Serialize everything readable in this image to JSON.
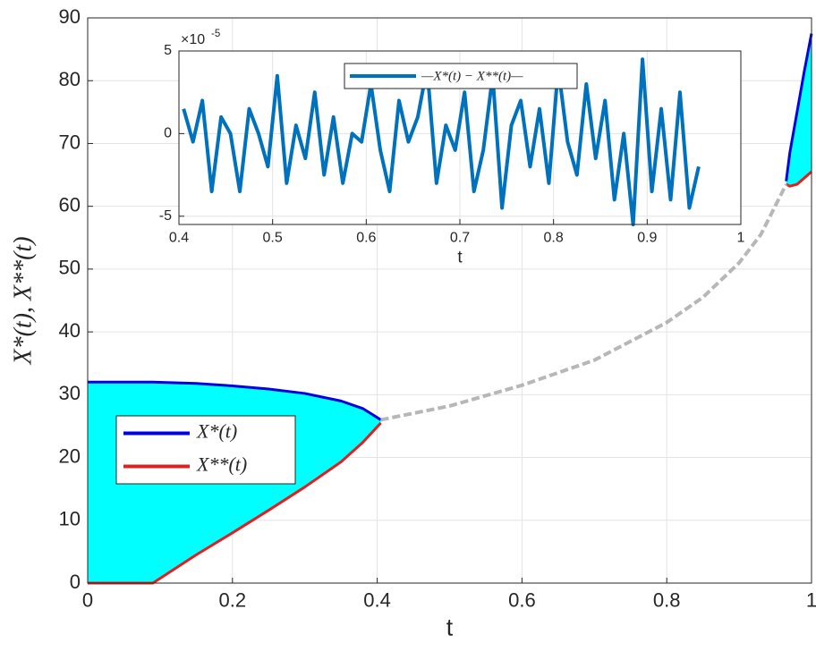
{
  "chart_data": [
    {
      "type": "line",
      "xlabel": "t",
      "ylabel": "X*(t), X**(t)",
      "x": [
        0,
        0.09,
        0.15,
        0.2,
        0.25,
        0.3,
        0.35,
        0.38,
        0.405,
        0.5,
        0.6,
        0.7,
        0.8,
        0.85,
        0.9,
        0.93,
        0.965,
        0.97,
        0.98,
        0.99,
        1
      ],
      "series": [
        {
          "name": "X*(t)",
          "color": "#0000e0",
          "values": [
            32,
            32,
            31.8,
            31.4,
            30.9,
            30.2,
            29.0,
            27.8,
            26,
            null,
            null,
            null,
            null,
            null,
            null,
            null,
            64,
            68.5,
            75,
            81.5,
            87.5
          ]
        },
        {
          "name": "X**(t)",
          "color": "#e02020",
          "values": [
            0,
            0,
            4.5,
            8.0,
            11.6,
            15.3,
            19.3,
            22.4,
            25.5,
            null,
            null,
            null,
            null,
            null,
            null,
            null,
            63.5,
            63.2,
            63.5,
            64.5,
            65.5
          ]
        },
        {
          "color": "#aaaaaa",
          "dashed": true,
          "values": [
            null,
            null,
            null,
            null,
            null,
            null,
            null,
            null,
            26,
            28.2,
            31.5,
            35.5,
            41.5,
            45.5,
            51,
            55.5,
            63.5,
            null,
            null,
            null,
            null
          ]
        }
      ],
      "fill_color": "#00ffff",
      "xlim": [
        0,
        1
      ],
      "xticks": [
        0,
        0.2,
        0.4,
        0.6,
        0.8,
        1
      ],
      "ylim": [
        0,
        90
      ],
      "yticks": [
        0,
        10,
        20,
        30,
        40,
        50,
        60,
        70,
        80,
        90
      ],
      "grid": true,
      "legend": "left"
    },
    {
      "type": "line",
      "xlabel": "t",
      "y_multiplier": {
        "base": "×10",
        "exponent": "-5"
      },
      "x": [
        0.405,
        0.415,
        0.425,
        0.435,
        0.445,
        0.455,
        0.465,
        0.475,
        0.485,
        0.495,
        0.505,
        0.515,
        0.525,
        0.535,
        0.545,
        0.555,
        0.565,
        0.575,
        0.585,
        0.595,
        0.605,
        0.615,
        0.625,
        0.635,
        0.645,
        0.655,
        0.665,
        0.675,
        0.685,
        0.695,
        0.705,
        0.715,
        0.725,
        0.735,
        0.745,
        0.755,
        0.765,
        0.775,
        0.785,
        0.795,
        0.805,
        0.815,
        0.825,
        0.835,
        0.845,
        0.855,
        0.865,
        0.875,
        0.885,
        0.895,
        0.905,
        0.915,
        0.925,
        0.935,
        0.945,
        0.955
      ],
      "series": [
        {
          "name": "—X*(t) − X**(t)—",
          "color": "#0072bd",
          "values": [
            1.5,
            -0.5,
            2,
            -3.5,
            1,
            0,
            -3.5,
            1.5,
            0,
            -2,
            3.5,
            -3,
            0.5,
            -1.5,
            2.5,
            -2.5,
            1,
            -3,
            0,
            -0.5,
            3,
            -1,
            -3.5,
            2,
            -0.5,
            1,
            4,
            -3,
            0.5,
            -1,
            2.5,
            -3.5,
            -1,
            3.5,
            -4.5,
            0.5,
            2,
            -2,
            1.5,
            -3,
            4,
            -0.5,
            -2.5,
            3,
            -1.5,
            2,
            -4,
            0,
            -5.5,
            4.5,
            -3.5,
            1.5,
            -4,
            2.5,
            -4.5,
            -2
          ]
        }
      ],
      "xlim": [
        0.4,
        1
      ],
      "xticks": [
        0.4,
        0.5,
        0.6,
        0.7,
        0.8,
        0.9,
        1
      ],
      "ylim": [
        -5.5,
        5
      ],
      "yticks": [
        -5,
        0,
        5
      ],
      "grid": true,
      "legend": "top"
    }
  ]
}
